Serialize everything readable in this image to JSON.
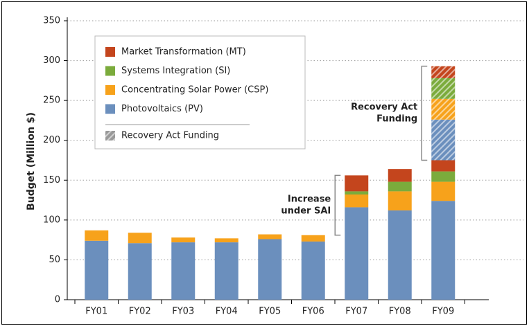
{
  "chart_data": {
    "type": "stacked_bar",
    "y_label": "Budget (Million $)",
    "categories": [
      "FY01",
      "FY02",
      "FY03",
      "FY04",
      "FY05",
      "FY06",
      "FY07",
      "FY08",
      "FY09"
    ],
    "series": [
      {
        "name": "Photovoltaics (PV)",
        "color": "#6b8fbd",
        "values": [
          74,
          71,
          72,
          72,
          76,
          73,
          116,
          112,
          124
        ],
        "recovery_values": [
          null,
          null,
          null,
          null,
          null,
          null,
          null,
          null,
          51
        ]
      },
      {
        "name": "Concentrating Solar Power (CSP)",
        "color": "#f7a21b",
        "values": [
          13,
          13,
          6,
          5,
          6,
          8,
          16,
          24,
          24
        ],
        "recovery_values": [
          null,
          null,
          null,
          null,
          null,
          null,
          null,
          null,
          26
        ]
      },
      {
        "name": "Systems Integration (SI)",
        "color": "#7bab3c",
        "values": [
          0,
          0,
          0,
          0,
          0,
          0,
          4,
          12,
          13
        ],
        "recovery_values": [
          null,
          null,
          null,
          null,
          null,
          null,
          null,
          null,
          26
        ]
      },
      {
        "name": "Market Transformation (MT)",
        "color": "#c4451d",
        "values": [
          0,
          0,
          0,
          0,
          0,
          0,
          20,
          16,
          14
        ],
        "recovery_values": [
          null,
          null,
          null,
          null,
          null,
          null,
          null,
          null,
          15
        ]
      }
    ],
    "recovery_label": "Recovery Act Funding",
    "annotations": [
      {
        "lines": [
          "Increase",
          "under SAI"
        ]
      },
      {
        "lines": [
          "Recovery Act",
          "Funding"
        ]
      }
    ],
    "ylim": [
      0,
      350
    ],
    "yticks": [
      0,
      50,
      100,
      150,
      200,
      250,
      300,
      350
    ],
    "grid": true
  }
}
